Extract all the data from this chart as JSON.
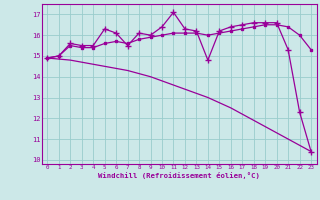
{
  "x": [
    0,
    1,
    2,
    3,
    4,
    5,
    6,
    7,
    8,
    9,
    10,
    11,
    12,
    13,
    14,
    15,
    16,
    17,
    18,
    19,
    20,
    21,
    22,
    23
  ],
  "line1": [
    14.9,
    15.0,
    15.6,
    15.5,
    15.5,
    16.3,
    16.1,
    15.5,
    16.1,
    16.0,
    16.4,
    17.1,
    16.3,
    16.2,
    14.8,
    16.2,
    16.4,
    16.5,
    16.6,
    16.6,
    16.6,
    15.3,
    12.3,
    10.4
  ],
  "line2": [
    14.9,
    15.0,
    15.5,
    15.4,
    15.4,
    15.6,
    15.7,
    15.6,
    15.8,
    15.9,
    16.0,
    16.1,
    16.1,
    16.1,
    16.0,
    16.1,
    16.2,
    16.3,
    16.4,
    16.5,
    16.5,
    16.4,
    16.0,
    15.3
  ],
  "line3": [
    14.9,
    14.85,
    14.8,
    14.7,
    14.6,
    14.5,
    14.4,
    14.3,
    14.15,
    14.0,
    13.8,
    13.6,
    13.4,
    13.2,
    13.0,
    12.75,
    12.5,
    12.2,
    11.9,
    11.6,
    11.3,
    11.0,
    10.7,
    10.4
  ],
  "line_color": "#990099",
  "bg_color": "#cce8e8",
  "grid_color": "#99cccc",
  "xlabel": "Windchill (Refroidissement éolien,°C)",
  "ylim": [
    9.8,
    17.5
  ],
  "xlim": [
    -0.5,
    23.5
  ],
  "yticks": [
    10,
    11,
    12,
    13,
    14,
    15,
    16,
    17
  ],
  "xticks": [
    0,
    1,
    2,
    3,
    4,
    5,
    6,
    7,
    8,
    9,
    10,
    11,
    12,
    13,
    14,
    15,
    16,
    17,
    18,
    19,
    20,
    21,
    22,
    23
  ]
}
